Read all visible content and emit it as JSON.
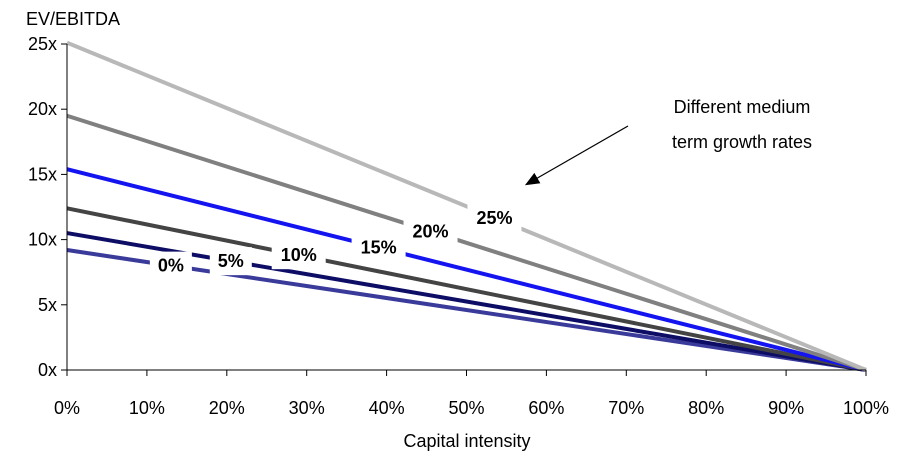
{
  "chart_data": {
    "type": "line",
    "title": "",
    "ylabel": "EV/EBITDA",
    "xlabel": "Capital intensity",
    "x": [
      0,
      100
    ],
    "x_ticks": [
      "0%",
      "10%",
      "20%",
      "30%",
      "40%",
      "50%",
      "60%",
      "70%",
      "80%",
      "90%",
      "100%"
    ],
    "y_ticks": [
      "0x",
      "5x",
      "10x",
      "15x",
      "20x",
      "25x"
    ],
    "xlim": [
      0,
      100
    ],
    "ylim": [
      0,
      25
    ],
    "grid": false,
    "series": [
      {
        "name": "0%",
        "values": [
          9.2,
          0
        ],
        "color": "#3a3a9a",
        "label_x": 13
      },
      {
        "name": "5%",
        "values": [
          10.5,
          0
        ],
        "color": "#0d0d66",
        "label_x": 20.5
      },
      {
        "name": "10%",
        "values": [
          12.4,
          0
        ],
        "color": "#444444",
        "label_x": 29
      },
      {
        "name": "15%",
        "values": [
          15.4,
          0
        ],
        "color": "#1414f0",
        "label_x": 39
      },
      {
        "name": "20%",
        "values": [
          19.5,
          0
        ],
        "color": "#808080",
        "label_x": 45.5
      },
      {
        "name": "25%",
        "values": [
          25.1,
          0
        ],
        "color": "#b8b8b8",
        "label_x": 53.5
      }
    ],
    "annotation": {
      "lines": [
        "Different medium",
        "term growth rates"
      ],
      "icon": "arrow-icon"
    }
  }
}
